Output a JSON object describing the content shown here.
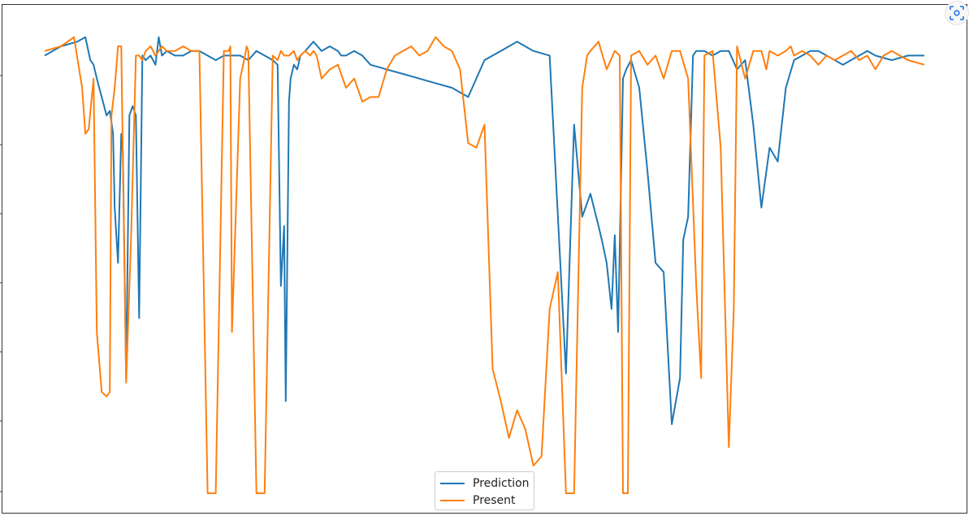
{
  "chart_data": {
    "type": "line",
    "title": "",
    "xlabel": "",
    "ylabel": "",
    "xlim": [
      0,
      540
    ],
    "ylim": [
      0,
      1
    ],
    "grid": false,
    "legend": {
      "placement": "lower center",
      "entries": [
        "Prediction",
        "Present"
      ]
    },
    "series": [
      {
        "name": "Prediction",
        "color": "#1f77b4",
        "x": [
          0,
          10,
          20,
          25,
          28,
          30,
          32,
          35,
          38,
          40,
          42,
          43,
          45,
          47,
          48,
          50,
          52,
          54,
          56,
          58,
          60,
          62,
          65,
          68,
          70,
          72,
          75,
          80,
          85,
          90,
          95,
          100,
          105,
          110,
          115,
          120,
          125,
          130,
          135,
          140,
          143,
          145,
          147,
          148,
          150,
          151,
          153,
          155,
          157,
          160,
          165,
          170,
          175,
          180,
          182,
          185,
          190,
          195,
          200,
          210,
          220,
          230,
          240,
          250,
          260,
          270,
          280,
          290,
          300,
          310,
          320,
          325,
          330,
          335,
          340,
          342,
          345,
          348,
          350,
          352,
          355,
          357,
          360,
          365,
          370,
          375,
          380,
          385,
          390,
          392,
          395,
          398,
          400,
          405,
          410,
          415,
          420,
          425,
          430,
          435,
          440,
          445,
          450,
          455,
          460,
          465,
          470,
          475,
          480,
          485,
          490,
          495,
          500,
          505,
          510,
          520,
          530,
          540
        ],
        "y": [
          0.95,
          0.97,
          0.98,
          0.99,
          0.94,
          0.93,
          0.9,
          0.86,
          0.82,
          0.83,
          0.78,
          0.62,
          0.5,
          0.78,
          0.74,
          0.25,
          0.82,
          0.84,
          0.82,
          0.38,
          0.95,
          0.94,
          0.95,
          0.93,
          0.99,
          0.95,
          0.96,
          0.95,
          0.95,
          0.96,
          0.96,
          0.95,
          0.94,
          0.95,
          0.95,
          0.95,
          0.94,
          0.96,
          0.95,
          0.94,
          0.93,
          0.45,
          0.58,
          0.2,
          0.85,
          0.9,
          0.93,
          0.92,
          0.95,
          0.96,
          0.98,
          0.96,
          0.97,
          0.96,
          0.95,
          0.95,
          0.96,
          0.95,
          0.93,
          0.92,
          0.91,
          0.9,
          0.89,
          0.88,
          0.86,
          0.94,
          0.96,
          0.98,
          0.96,
          0.95,
          0.26,
          0.8,
          0.6,
          0.65,
          0.58,
          0.55,
          0.5,
          0.4,
          0.56,
          0.35,
          0.9,
          0.92,
          0.94,
          0.88,
          0.7,
          0.5,
          0.48,
          0.15,
          0.25,
          0.55,
          0.6,
          0.95,
          0.96,
          0.96,
          0.95,
          0.96,
          0.96,
          0.92,
          0.94,
          0.8,
          0.62,
          0.75,
          0.72,
          0.88,
          0.94,
          0.95,
          0.96,
          0.96,
          0.95,
          0.94,
          0.93,
          0.94,
          0.95,
          0.96,
          0.95,
          0.94,
          0.95,
          0.95
        ]
      },
      {
        "name": "Present",
        "color": "#ff7f0e",
        "x": [
          0,
          10,
          18,
          23,
          25,
          27,
          30,
          32,
          35,
          38,
          40,
          41,
          43,
          45,
          47,
          50,
          53,
          56,
          58,
          60,
          62,
          65,
          68,
          70,
          72,
          75,
          80,
          85,
          90,
          95,
          100,
          105,
          110,
          113,
          114,
          115,
          120,
          123,
          124,
          125,
          130,
          135,
          140,
          143,
          145,
          147,
          150,
          153,
          155,
          157,
          160,
          163,
          165,
          167,
          170,
          175,
          180,
          183,
          185,
          190,
          195,
          200,
          205,
          210,
          215,
          220,
          225,
          230,
          235,
          240,
          245,
          250,
          255,
          260,
          265,
          270,
          275,
          280,
          285,
          290,
          295,
          300,
          305,
          310,
          315,
          320,
          325,
          330,
          333,
          335,
          340,
          345,
          350,
          353,
          355,
          358,
          360,
          365,
          370,
          375,
          380,
          385,
          390,
          395,
          400,
          403,
          405,
          410,
          415,
          420,
          423,
          425,
          430,
          435,
          440,
          443,
          445,
          450,
          455,
          458,
          460,
          465,
          470,
          475,
          480,
          485,
          490,
          495,
          500,
          505,
          510,
          515,
          520,
          525,
          530,
          540
        ],
        "y": [
          0.96,
          0.97,
          0.99,
          0.88,
          0.78,
          0.79,
          0.9,
          0.35,
          0.22,
          0.21,
          0.22,
          0.82,
          0.88,
          0.97,
          0.97,
          0.24,
          0.55,
          0.95,
          0.95,
          0.94,
          0.96,
          0.97,
          0.95,
          0.96,
          0.97,
          0.96,
          0.96,
          0.97,
          0.96,
          0.96,
          0.0,
          0.0,
          0.96,
          0.96,
          0.97,
          0.35,
          0.9,
          0.95,
          0.97,
          0.96,
          0.0,
          0.0,
          0.95,
          0.94,
          0.96,
          0.95,
          0.95,
          0.96,
          0.94,
          0.95,
          0.96,
          0.95,
          0.96,
          0.95,
          0.9,
          0.92,
          0.93,
          0.9,
          0.88,
          0.9,
          0.85,
          0.86,
          0.86,
          0.92,
          0.95,
          0.96,
          0.97,
          0.95,
          0.96,
          0.99,
          0.97,
          0.96,
          0.92,
          0.76,
          0.75,
          0.8,
          0.27,
          0.2,
          0.12,
          0.18,
          0.14,
          0.06,
          0.08,
          0.4,
          0.48,
          0.0,
          0.0,
          0.88,
          0.95,
          0.96,
          0.98,
          0.92,
          0.96,
          0.95,
          0.0,
          0.0,
          0.95,
          0.96,
          0.93,
          0.95,
          0.9,
          0.96,
          0.96,
          0.9,
          0.45,
          0.25,
          0.95,
          0.96,
          0.75,
          0.1,
          0.4,
          0.97,
          0.9,
          0.96,
          0.96,
          0.92,
          0.96,
          0.95,
          0.96,
          0.97,
          0.95,
          0.96,
          0.95,
          0.93,
          0.95,
          0.94,
          0.95,
          0.96,
          0.94,
          0.95,
          0.92,
          0.95,
          0.96,
          0.95,
          0.94,
          0.93
        ]
      }
    ]
  },
  "legend": {
    "entry_0": "Prediction",
    "entry_1": "Present"
  },
  "toolbar": {
    "lens_icon": "lens-icon"
  }
}
